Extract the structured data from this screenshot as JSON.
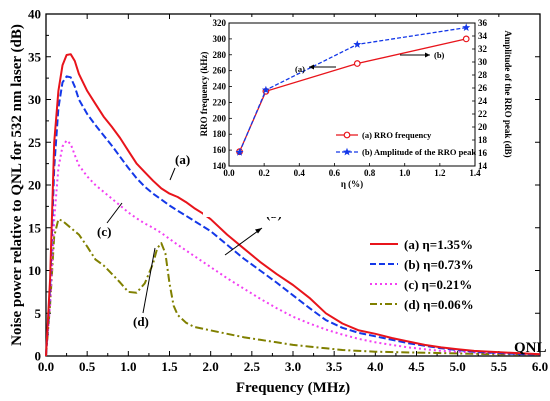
{
  "chart_data": [
    {
      "type": "line",
      "title": "",
      "xlabel": "Frequency (MHz)",
      "ylabel": "Noise power relative to QNL for 532 nm laser (dB)",
      "xlim": [
        0,
        6
      ],
      "ylim": [
        0,
        40
      ],
      "x_ticks": [
        "0.0",
        "0.5",
        "1.0",
        "1.5",
        "2.0",
        "2.5",
        "3.0",
        "3.5",
        "4.0",
        "4.5",
        "5.0",
        "5.5",
        "6.0"
      ],
      "y_ticks": [
        "0",
        "5",
        "10",
        "15",
        "20",
        "25",
        "30",
        "35",
        "40"
      ],
      "grid": false,
      "legend_position": "lower-right",
      "baseline_label": "QNL",
      "series": [
        {
          "name": "(a) η=1.35%",
          "color": "#e8141b",
          "style": "solid",
          "x": [
            0,
            0.05,
            0.1,
            0.15,
            0.2,
            0.25,
            0.3,
            0.35,
            0.4,
            0.5,
            0.6,
            0.7,
            0.8,
            0.9,
            1.0,
            1.1,
            1.2,
            1.3,
            1.4,
            1.5,
            1.6,
            1.7,
            1.8,
            1.9,
            2.0,
            2.2,
            2.4,
            2.6,
            2.8,
            3.0,
            3.2,
            3.4,
            3.6,
            3.8,
            4.0,
            4.2,
            4.4,
            4.6,
            4.8,
            5.0,
            5.2,
            5.4,
            5.6,
            5.8,
            6.0
          ],
          "y": [
            0,
            9,
            25,
            31,
            34,
            35.2,
            35.3,
            34.5,
            33,
            31,
            29.5,
            28,
            26.8,
            25.5,
            24,
            22.5,
            21.5,
            20.5,
            19.6,
            19,
            18.6,
            18,
            17.3,
            16.7,
            16,
            14.2,
            12.6,
            11,
            9.6,
            8.3,
            6.8,
            5,
            3.8,
            3,
            2.6,
            2.1,
            1.7,
            1.3,
            1,
            0.8,
            0.6,
            0.5,
            0.4,
            0.3,
            0.2
          ]
        },
        {
          "name": "(b) η=0.73%",
          "color": "#1438e8",
          "style": "dashed",
          "x": [
            0,
            0.05,
            0.1,
            0.15,
            0.2,
            0.25,
            0.3,
            0.35,
            0.4,
            0.5,
            0.6,
            0.7,
            0.8,
            0.9,
            1.0,
            1.1,
            1.2,
            1.3,
            1.4,
            1.5,
            1.6,
            1.7,
            1.8,
            1.9,
            2.0,
            2.2,
            2.4,
            2.6,
            2.8,
            3.0,
            3.2,
            3.4,
            3.6,
            3.8,
            4.0,
            4.2,
            4.4,
            4.6,
            4.8,
            5.0,
            5.2,
            5.4,
            5.6,
            5.8,
            6.0
          ],
          "y": [
            0,
            8,
            22,
            29,
            32,
            32.7,
            32.6,
            31.5,
            30,
            28.3,
            27,
            25.8,
            24.6,
            23.3,
            22,
            20.8,
            19.8,
            19,
            18.3,
            17.6,
            17,
            16.4,
            15.8,
            15.2,
            14.6,
            13,
            11.4,
            10,
            8.6,
            7.1,
            5.6,
            4.2,
            3.3,
            2.7,
            2.3,
            1.9,
            1.5,
            1.2,
            0.9,
            0.7,
            0.5,
            0.4,
            0.3,
            0.2,
            0.2
          ]
        },
        {
          "name": "(c) η=0.21%",
          "color": "#f23ff2",
          "style": "dotted",
          "x": [
            0,
            0.05,
            0.1,
            0.15,
            0.2,
            0.25,
            0.3,
            0.35,
            0.4,
            0.5,
            0.6,
            0.7,
            0.8,
            0.9,
            1.0,
            1.1,
            1.2,
            1.3,
            1.4,
            1.5,
            1.6,
            1.8,
            2.0,
            2.2,
            2.4,
            2.6,
            2.8,
            3.0,
            3.2,
            3.4,
            3.6,
            3.8,
            4.0,
            4.2,
            4.4,
            4.6,
            4.8,
            5.0,
            5.5,
            6.0
          ],
          "y": [
            0,
            6,
            16,
            22,
            24.5,
            25.2,
            24.8,
            23.5,
            22.3,
            21,
            20,
            19.2,
            18.4,
            17.6,
            16.8,
            16.1,
            15.5,
            15,
            14.4,
            13.7,
            13,
            11.7,
            10.4,
            9.1,
            7.9,
            6.7,
            5.6,
            4.6,
            3.8,
            3.1,
            2.5,
            2,
            1.6,
            1.3,
            1,
            0.8,
            0.6,
            0.5,
            0.3,
            0.2
          ]
        },
        {
          "name": "(d) η=0.06%",
          "color": "#808000",
          "style": "dashdot",
          "x": [
            0,
            0.05,
            0.1,
            0.15,
            0.2,
            0.3,
            0.4,
            0.5,
            0.6,
            0.7,
            0.8,
            0.9,
            1.0,
            1.1,
            1.2,
            1.3,
            1.35,
            1.4,
            1.45,
            1.5,
            1.55,
            1.6,
            1.7,
            1.8,
            2.0,
            2.2,
            2.4,
            2.6,
            2.8,
            3.0,
            3.2,
            3.4,
            3.6,
            3.8,
            4.0,
            4.5,
            5.0,
            5.5,
            6.0
          ],
          "y": [
            0,
            6,
            14,
            16,
            15.8,
            15,
            14.2,
            12.8,
            11.3,
            10.6,
            9.6,
            8.6,
            7.5,
            7.4,
            8.5,
            10.8,
            12.6,
            13.2,
            12,
            8.5,
            5.9,
            4.8,
            3.9,
            3.4,
            3,
            2.6,
            2.2,
            1.9,
            1.6,
            1.3,
            1.1,
            0.9,
            0.7,
            0.6,
            0.5,
            0.4,
            0.3,
            0.2,
            0.2
          ]
        }
      ],
      "annotations": [
        "(a)",
        "(b)",
        "(c)",
        "(d)"
      ]
    },
    {
      "type": "line",
      "title": "",
      "xlabel": "η (%)",
      "ylabel": "RRO frequency (kHz)",
      "y2label": "Amplitude of the RRO peak (dB)",
      "xlim": [
        0,
        1.4
      ],
      "ylim": [
        140,
        320
      ],
      "y2lim": [
        14,
        36
      ],
      "x_ticks": [
        "0.0",
        "0.2",
        "0.4",
        "0.6",
        "0.8",
        "1.0",
        "1.2",
        "1.4"
      ],
      "y_ticks": [
        "140",
        "160",
        "180",
        "200",
        "220",
        "240",
        "260",
        "280",
        "300",
        "320"
      ],
      "y2_ticks": [
        "14",
        "16",
        "18",
        "20",
        "22",
        "24",
        "26",
        "28",
        "30",
        "32",
        "34",
        "36"
      ],
      "legend_position": "lower-right",
      "series": [
        {
          "name": "(a) RRO frequency",
          "color": "#e8141b",
          "style": "solid",
          "marker": "circle",
          "axis": "left",
          "x": [
            0.06,
            0.21,
            0.73,
            1.35
          ],
          "y": [
            158,
            234,
            269,
            300
          ]
        },
        {
          "name": "(b) Amplitude of the RRO peak",
          "color": "#1438e8",
          "style": "dashed",
          "marker": "star",
          "axis": "right",
          "x": [
            0.06,
            0.21,
            0.73,
            1.35
          ],
          "y": [
            16.1,
            25.7,
            32.7,
            35.3
          ]
        }
      ],
      "annotations": [
        "(a)",
        "(b)"
      ]
    }
  ]
}
